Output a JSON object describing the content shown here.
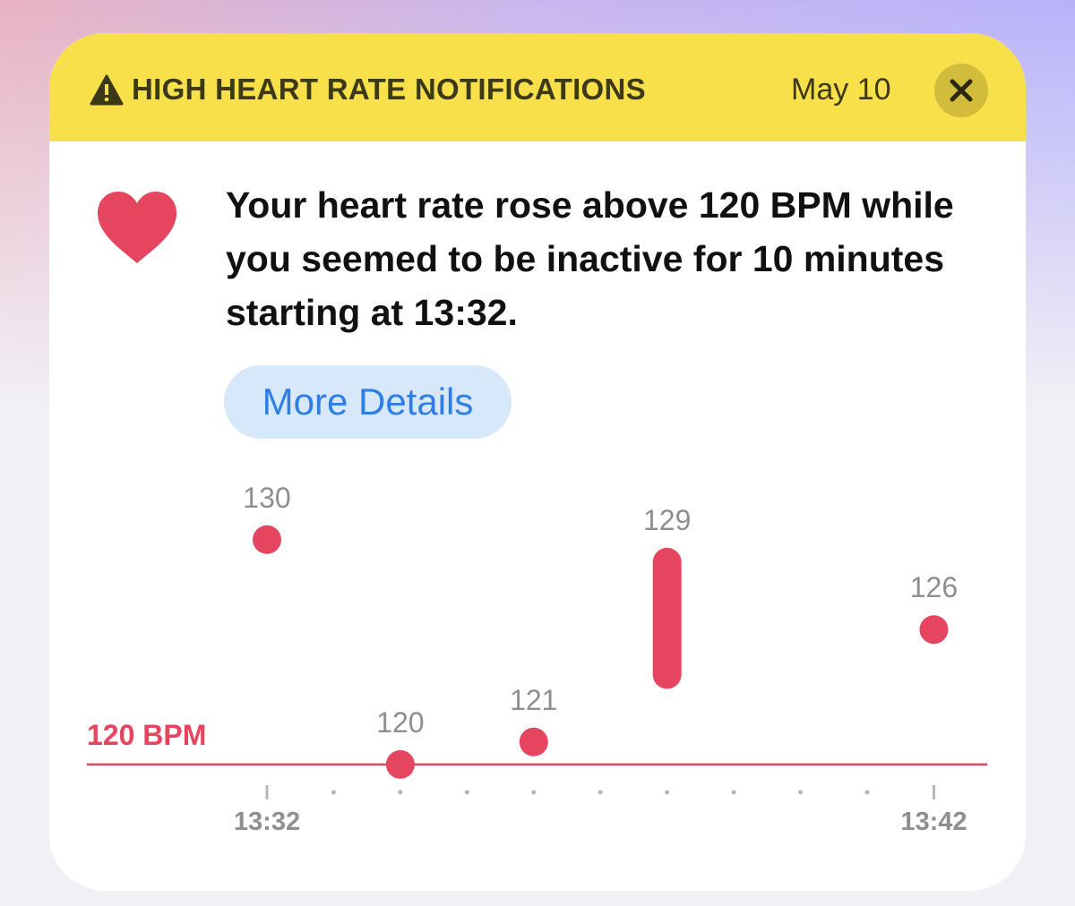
{
  "header": {
    "title": "HIGH HEART RATE NOTIFICATIONS",
    "date": "May 10"
  },
  "message": "Your heart rate rose above 120 BPM while you seemed to be inactive for 10 minutes starting at 13:32.",
  "button": "More Details",
  "chart_data": {
    "type": "range",
    "x": [
      812,
      814,
      816,
      818,
      822
    ],
    "values": [
      130,
      120,
      121,
      129,
      126
    ],
    "lows": [
      130,
      120,
      121,
      124,
      126
    ],
    "color": "#e5455e",
    "threshold": 120,
    "threshold_label": "120 BPM",
    "xlim": [
      809.3,
      822.8
    ],
    "xticks": [
      {
        "value": 812,
        "label": "13:32"
      },
      {
        "value": 822,
        "label": "13:42"
      }
    ],
    "xminor": [
      813,
      814,
      815,
      816,
      817,
      818,
      819,
      820,
      821
    ],
    "ylim": [
      119,
      132.5
    ]
  }
}
